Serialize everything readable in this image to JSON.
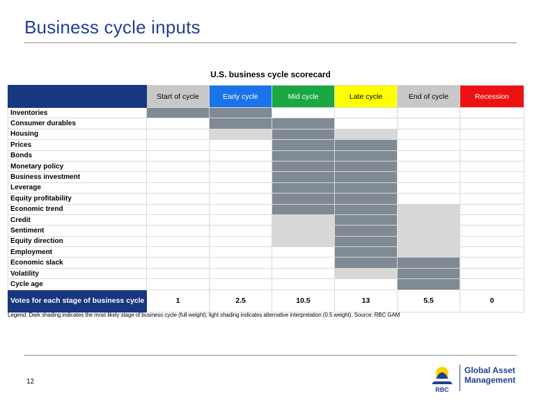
{
  "page": {
    "title": "Business cycle inputs",
    "page_number": "12",
    "legend": "Legend: Dark shading indicates the most likely stage of business cycle (full weight); light shading indicates alternative interpretation (0.5 weight). Source: RBC GAM",
    "logo": {
      "bank": "RBC",
      "line1": "Global Asset",
      "line2": "Management",
      "color": "#1f3f93"
    }
  },
  "scorecard": {
    "title": "U.S. business cycle scorecard",
    "stages": [
      {
        "label": "Start of cycle",
        "color": "#c8c8c8",
        "text_color": "#000000"
      },
      {
        "label": "Early cycle",
        "color": "#1874e8",
        "text_color": "#ffffff"
      },
      {
        "label": "Mid cycle",
        "color": "#1aa843",
        "text_color": "#ffffff"
      },
      {
        "label": "Late cycle",
        "color": "#ffff00",
        "text_color": "#000000"
      },
      {
        "label": "End of cycle",
        "color": "#c8c8c8",
        "text_color": "#000000"
      },
      {
        "label": "Recession",
        "color": "#ee1111",
        "text_color": "#ffffff"
      }
    ],
    "rows": [
      {
        "label": "Inventories",
        "cells": [
          "D",
          "D",
          "",
          "",
          "",
          ""
        ]
      },
      {
        "label": "Consumer durables",
        "cells": [
          "",
          "D",
          "D",
          "",
          "",
          ""
        ]
      },
      {
        "label": "Housing",
        "cells": [
          "",
          "L",
          "D",
          "L",
          "",
          ""
        ]
      },
      {
        "label": "Prices",
        "cells": [
          "",
          "",
          "D",
          "D",
          "",
          ""
        ]
      },
      {
        "label": "Bonds",
        "cells": [
          "",
          "",
          "D",
          "D",
          "",
          ""
        ]
      },
      {
        "label": "Monetary policy",
        "cells": [
          "",
          "",
          "D",
          "D",
          "",
          ""
        ]
      },
      {
        "label": "Business investment",
        "cells": [
          "",
          "",
          "D",
          "D",
          "",
          ""
        ]
      },
      {
        "label": "Leverage",
        "cells": [
          "",
          "",
          "D",
          "D",
          "",
          ""
        ]
      },
      {
        "label": "Equity profitability",
        "cells": [
          "",
          "",
          "D",
          "D",
          "",
          ""
        ]
      },
      {
        "label": "Economic trend",
        "cells": [
          "",
          "",
          "D",
          "D",
          "L",
          ""
        ]
      },
      {
        "label": "Credit",
        "cells": [
          "",
          "",
          "L",
          "D",
          "L",
          ""
        ]
      },
      {
        "label": "Sentiment",
        "cells": [
          "",
          "",
          "L",
          "D",
          "L",
          ""
        ]
      },
      {
        "label": "Equity direction",
        "cells": [
          "",
          "",
          "L",
          "D",
          "L",
          ""
        ]
      },
      {
        "label": "Employment",
        "cells": [
          "",
          "",
          "",
          "D",
          "L",
          ""
        ]
      },
      {
        "label": "Economic slack",
        "cells": [
          "",
          "",
          "",
          "D",
          "D",
          ""
        ]
      },
      {
        "label": "Volatility",
        "cells": [
          "",
          "",
          "",
          "L",
          "D",
          ""
        ]
      },
      {
        "label": "Cycle age",
        "cells": [
          "",
          "",
          "",
          "",
          "D",
          ""
        ]
      }
    ],
    "votes": {
      "label": "Votes for each stage of business cycle",
      "values": [
        "1",
        "2.5",
        "10.5",
        "13",
        "5.5",
        "0"
      ]
    },
    "shading": {
      "dark": "#7f8a94",
      "light": "#d8d8d8"
    }
  }
}
